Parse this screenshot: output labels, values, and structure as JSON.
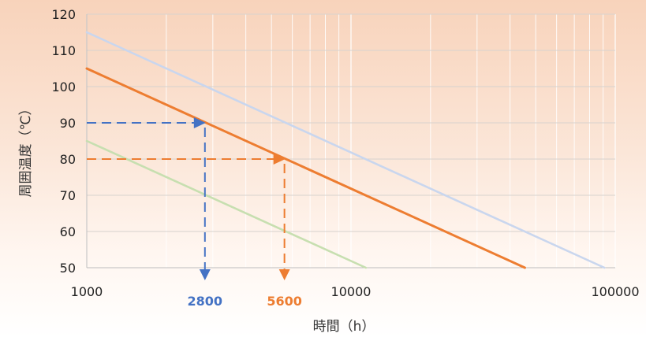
{
  "chart_data": {
    "type": "line",
    "title": "",
    "xlabel": "時間（h）",
    "ylabel": "周囲温度（℃）",
    "x_scale": "log",
    "xlim": [
      1000,
      100000
    ],
    "ylim": [
      50,
      120
    ],
    "x_ticks": [
      "1000",
      "10000",
      "100000"
    ],
    "y_ticks": [
      "50",
      "60",
      "70",
      "80",
      "90",
      "100",
      "110",
      "120"
    ],
    "grid": true,
    "series": [
      {
        "color": "#c9d6ee",
        "points": [
          [
            1000,
            115
          ],
          [
            91000,
            50
          ]
        ]
      },
      {
        "color": "#ed7d31",
        "points": [
          [
            1000,
            105
          ],
          [
            45500,
            50
          ]
        ]
      },
      {
        "color": "#c7dfb0",
        "points": [
          [
            1000,
            85
          ],
          [
            11380,
            50
          ]
        ]
      }
    ],
    "annotations": [
      {
        "label": "2800",
        "color": "#4472c4",
        "x": 2800,
        "y": 90
      },
      {
        "label": "5600",
        "color": "#ed7d31",
        "x": 5600,
        "y": 80
      }
    ]
  }
}
